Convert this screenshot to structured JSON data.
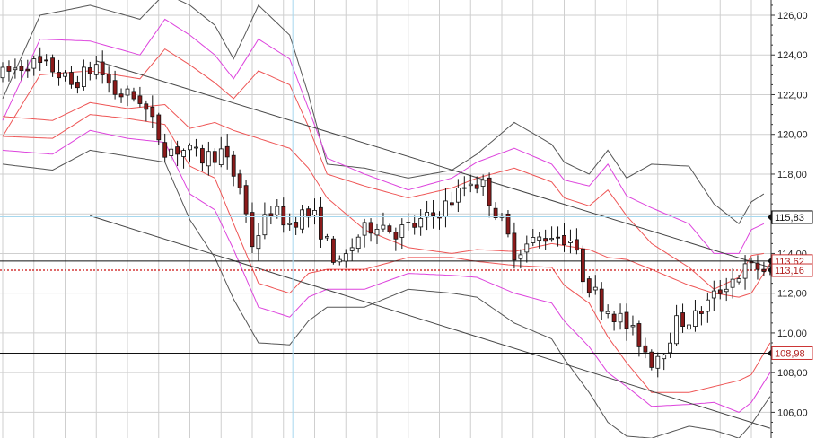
{
  "chart_data": {
    "type": "candlestick",
    "y_axis": {
      "position": "right",
      "range": [
        104.7,
        127.1
      ],
      "ticks": [
        "126,00",
        "124,00",
        "122,00",
        "120,00",
        "118,00",
        "116,00",
        "114,00",
        "112,00",
        "110,00",
        "108,00",
        "106,00"
      ],
      "tick_values": [
        126,
        124,
        122,
        120,
        118,
        116,
        114,
        112,
        110,
        108,
        106
      ]
    },
    "x_axis": {
      "bars": 124
    },
    "price_markers": [
      {
        "label": "115,83",
        "value": 115.83,
        "style": "box",
        "line": "none",
        "color": "#000000"
      },
      {
        "label": "113,62",
        "value": 113.62,
        "style": "box",
        "line": "solid",
        "color": "#cc3333"
      },
      {
        "label": "113,16",
        "value": 113.16,
        "style": "box",
        "line": "dotted",
        "color": "#cc3333"
      },
      {
        "label": "108,98",
        "value": 108.98,
        "style": "box",
        "line": "solid",
        "color": "#cc3333"
      }
    ],
    "crosshair": {
      "bar": 46.5,
      "value": 115.85
    },
    "trendlines": [
      {
        "name": "upper-channel",
        "from": [
          15,
          123.7
        ],
        "to": [
          123,
          113.3
        ]
      },
      {
        "name": "lower-channel",
        "from": [
          14,
          115.9
        ],
        "to": [
          123,
          105.2
        ]
      }
    ],
    "bands": [
      {
        "name": "outer-upper",
        "color": "#555555",
        "values": [
          [
            0,
            121.8
          ],
          [
            6,
            126.0
          ],
          [
            14,
            126.5
          ],
          [
            22,
            125.8
          ],
          [
            26,
            127.1
          ],
          [
            30,
            126.5
          ],
          [
            34,
            125.5
          ],
          [
            37,
            123.8
          ],
          [
            41,
            126.5
          ],
          [
            46,
            125.0
          ],
          [
            49,
            122.0
          ],
          [
            52,
            118.5
          ],
          [
            58,
            118.3
          ],
          [
            65,
            117.8
          ],
          [
            72,
            118.2
          ],
          [
            76,
            119.0
          ],
          [
            82,
            120.6
          ],
          [
            88,
            119.5
          ],
          [
            90,
            118.6
          ],
          [
            94,
            118.0
          ],
          [
            97,
            119.2
          ],
          [
            100,
            117.8
          ],
          [
            104,
            118.5
          ],
          [
            110,
            118.4
          ],
          [
            114,
            116.5
          ],
          [
            118,
            115.5
          ],
          [
            120,
            116.6
          ],
          [
            122,
            117.0
          ]
        ]
      },
      {
        "name": "upper-2",
        "color": "#dd44dd",
        "values": [
          [
            0,
            120.7
          ],
          [
            6,
            124.8
          ],
          [
            14,
            124.7
          ],
          [
            22,
            124.0
          ],
          [
            26,
            125.8
          ],
          [
            30,
            125.0
          ],
          [
            34,
            124.0
          ],
          [
            37,
            122.8
          ],
          [
            41,
            124.8
          ],
          [
            46,
            123.8
          ],
          [
            49,
            121.3
          ],
          [
            52,
            118.8
          ],
          [
            58,
            118.0
          ],
          [
            65,
            117.2
          ],
          [
            72,
            117.8
          ],
          [
            76,
            118.6
          ],
          [
            82,
            119.3
          ],
          [
            88,
            118.5
          ],
          [
            90,
            117.7
          ],
          [
            94,
            117.4
          ],
          [
            97,
            118.5
          ],
          [
            100,
            116.9
          ],
          [
            104,
            116.3
          ],
          [
            110,
            115.5
          ],
          [
            114,
            114.0
          ],
          [
            118,
            114.0
          ],
          [
            120,
            115.2
          ],
          [
            122,
            115.5
          ]
        ]
      },
      {
        "name": "upper-1",
        "color": "#ee5555",
        "values": [
          [
            0,
            119.9
          ],
          [
            6,
            123.0
          ],
          [
            14,
            123.2
          ],
          [
            22,
            122.8
          ],
          [
            26,
            124.3
          ],
          [
            30,
            123.5
          ],
          [
            34,
            122.6
          ],
          [
            37,
            121.8
          ],
          [
            41,
            123.2
          ],
          [
            46,
            122.5
          ],
          [
            49,
            120.4
          ],
          [
            52,
            118.0
          ],
          [
            58,
            117.4
          ],
          [
            65,
            116.8
          ],
          [
            72,
            117.3
          ],
          [
            76,
            117.8
          ],
          [
            82,
            118.3
          ],
          [
            88,
            117.6
          ],
          [
            90,
            116.8
          ],
          [
            94,
            116.4
          ],
          [
            97,
            117.2
          ],
          [
            100,
            115.9
          ],
          [
            104,
            114.5
          ],
          [
            110,
            113.3
          ],
          [
            114,
            112.2
          ],
          [
            118,
            112.8
          ],
          [
            120,
            113.9
          ],
          [
            122,
            114.0
          ]
        ]
      },
      {
        "name": "middle",
        "color": "#ee5555",
        "values": [
          [
            0,
            120.9
          ],
          [
            8,
            120.7
          ],
          [
            14,
            121.6
          ],
          [
            20,
            121.3
          ],
          [
            26,
            121.5
          ],
          [
            30,
            120.3
          ],
          [
            34,
            120.6
          ],
          [
            37,
            120.2
          ],
          [
            41,
            119.8
          ],
          [
            46,
            119.3
          ],
          [
            49,
            118.3
          ],
          [
            52,
            116.8
          ],
          [
            58,
            115.2
          ],
          [
            65,
            114.3
          ],
          [
            72,
            114.0
          ],
          [
            76,
            114.2
          ],
          [
            82,
            114.1
          ],
          [
            88,
            114.5
          ],
          [
            90,
            114.4
          ],
          [
            94,
            114.2
          ],
          [
            97,
            113.8
          ],
          [
            100,
            113.7
          ],
          [
            104,
            113.2
          ],
          [
            110,
            112.4
          ],
          [
            114,
            112.0
          ],
          [
            118,
            111.8
          ],
          [
            120,
            112.0
          ],
          [
            123,
            113.5
          ]
        ]
      },
      {
        "name": "lower-1",
        "color": "#ee5555",
        "values": [
          [
            0,
            119.9
          ],
          [
            8,
            119.8
          ],
          [
            14,
            121.0
          ],
          [
            20,
            120.8
          ],
          [
            26,
            120.5
          ],
          [
            30,
            118.4
          ],
          [
            34,
            117.8
          ],
          [
            37,
            115.5
          ],
          [
            41,
            112.5
          ],
          [
            46,
            112.0
          ],
          [
            49,
            113.0
          ],
          [
            52,
            113.2
          ],
          [
            58,
            113.2
          ],
          [
            65,
            113.8
          ],
          [
            72,
            113.8
          ],
          [
            76,
            113.6
          ],
          [
            82,
            113.4
          ],
          [
            88,
            113.3
          ],
          [
            90,
            112.4
          ],
          [
            94,
            111.5
          ],
          [
            97,
            109.8
          ],
          [
            100,
            108.5
          ],
          [
            104,
            107.0
          ],
          [
            110,
            107.0
          ],
          [
            114,
            107.3
          ],
          [
            118,
            107.6
          ],
          [
            120,
            107.9
          ],
          [
            123,
            109.5
          ]
        ]
      },
      {
        "name": "lower-2",
        "color": "#dd44dd",
        "values": [
          [
            0,
            119.2
          ],
          [
            8,
            119.0
          ],
          [
            14,
            120.2
          ],
          [
            20,
            119.8
          ],
          [
            26,
            119.6
          ],
          [
            30,
            117.0
          ],
          [
            34,
            116.2
          ],
          [
            37,
            114.2
          ],
          [
            41,
            111.3
          ],
          [
            46,
            110.8
          ],
          [
            49,
            111.8
          ],
          [
            52,
            112.2
          ],
          [
            58,
            112.2
          ],
          [
            65,
            113.0
          ],
          [
            72,
            112.9
          ],
          [
            76,
            112.8
          ],
          [
            82,
            112.0
          ],
          [
            88,
            111.5
          ],
          [
            90,
            110.6
          ],
          [
            94,
            109.3
          ],
          [
            97,
            108.0
          ],
          [
            100,
            107.3
          ],
          [
            104,
            106.3
          ],
          [
            110,
            106.4
          ],
          [
            114,
            106.5
          ],
          [
            118,
            106.0
          ],
          [
            120,
            106.5
          ],
          [
            123,
            108.0
          ]
        ]
      },
      {
        "name": "outer-lower",
        "color": "#555555",
        "values": [
          [
            0,
            118.5
          ],
          [
            8,
            118.2
          ],
          [
            14,
            119.2
          ],
          [
            20,
            118.9
          ],
          [
            26,
            118.6
          ],
          [
            30,
            115.7
          ],
          [
            34,
            113.8
          ],
          [
            37,
            111.7
          ],
          [
            41,
            109.5
          ],
          [
            46,
            109.4
          ],
          [
            49,
            110.6
          ],
          [
            52,
            111.3
          ],
          [
            58,
            111.3
          ],
          [
            65,
            112.2
          ],
          [
            72,
            112.0
          ],
          [
            76,
            111.8
          ],
          [
            82,
            110.5
          ],
          [
            88,
            109.7
          ],
          [
            90,
            108.7
          ],
          [
            94,
            107.0
          ],
          [
            97,
            105.5
          ],
          [
            100,
            104.8
          ],
          [
            104,
            104.7
          ],
          [
            110,
            105.3
          ],
          [
            114,
            105.1
          ],
          [
            118,
            104.7
          ],
          [
            120,
            105.4
          ],
          [
            123,
            106.8
          ]
        ]
      }
    ],
    "candle_anchors": [
      [
        0,
        123.0
      ],
      [
        4,
        123.6
      ],
      [
        8,
        123.3
      ],
      [
        11,
        122.5
      ],
      [
        15,
        123.5
      ],
      [
        18,
        122.1
      ],
      [
        22,
        121.8
      ],
      [
        26,
        119.3
      ],
      [
        29,
        119.2
      ],
      [
        32,
        118.8
      ],
      [
        35,
        119.1
      ],
      [
        38,
        117.4
      ],
      [
        40,
        114.5
      ],
      [
        43,
        116.2
      ],
      [
        46,
        115.5
      ],
      [
        48,
        116.0
      ],
      [
        50,
        115.8
      ],
      [
        52,
        114.5
      ],
      [
        54,
        113.3
      ],
      [
        57,
        114.9
      ],
      [
        60,
        115.6
      ],
      [
        63,
        115.1
      ],
      [
        66,
        115.4
      ],
      [
        69,
        115.9
      ],
      [
        72,
        116.7
      ],
      [
        75,
        117.7
      ],
      [
        77,
        117.4
      ],
      [
        80,
        115.5
      ],
      [
        82,
        114.1
      ],
      [
        85,
        114.6
      ],
      [
        88,
        115.0
      ],
      [
        91,
        114.7
      ],
      [
        93,
        112.9
      ],
      [
        96,
        111.5
      ],
      [
        99,
        110.7
      ],
      [
        102,
        109.6
      ],
      [
        104,
        108.6
      ],
      [
        106,
        109.3
      ],
      [
        108,
        110.5
      ],
      [
        111,
        110.8
      ],
      [
        113,
        111.5
      ],
      [
        116,
        112.5
      ],
      [
        119,
        113.2
      ],
      [
        121,
        113.3
      ],
      [
        123,
        113.1
      ]
    ],
    "candle_color_up": "#ffffff",
    "candle_color_down": "#8b1a1a"
  }
}
